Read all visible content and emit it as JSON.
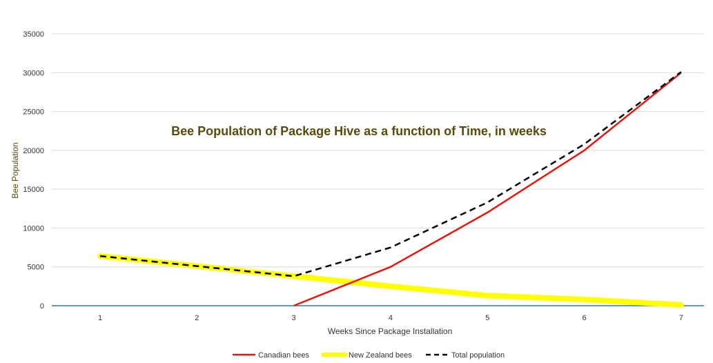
{
  "chart_data": {
    "type": "line",
    "title": "Bee Population of Package Hive as a function of Time, in weeks",
    "xlabel": "Weeks Since Package Installation",
    "ylabel": "Bee Population",
    "categories": [
      "1",
      "2",
      "3",
      "4",
      "5",
      "6",
      "7"
    ],
    "x": [
      1,
      2,
      3,
      4,
      5,
      6,
      7
    ],
    "ylim": [
      0,
      35000
    ],
    "yticks": [
      0,
      5000,
      10000,
      15000,
      20000,
      25000,
      30000,
      35000
    ],
    "ytick_labels": [
      "0",
      "5000",
      "10000",
      "15000",
      "20000",
      "25000",
      "30000",
      "35000"
    ],
    "grid": true,
    "legend_position": "bottom",
    "series": [
      {
        "name": "Canadian bees",
        "color": "#e8150e",
        "style": "solid",
        "x": [
          3,
          4,
          5,
          6,
          7
        ],
        "values": [
          0,
          5000,
          12000,
          20000,
          30000
        ]
      },
      {
        "name": "New Zealand bees",
        "color": "#ffff00",
        "style": "thick",
        "x": [
          1,
          2,
          3,
          4,
          5,
          6,
          7
        ],
        "values": [
          6400,
          5100,
          3800,
          2500,
          1300,
          800,
          100
        ]
      },
      {
        "name": "Total population",
        "color": "#000000",
        "style": "dashed",
        "x": [
          1,
          2,
          3,
          4,
          5,
          6,
          7
        ],
        "values": [
          6400,
          5100,
          3800,
          7500,
          13300,
          20800,
          30100
        ]
      }
    ],
    "baseline_color": "#2a7ab0"
  }
}
